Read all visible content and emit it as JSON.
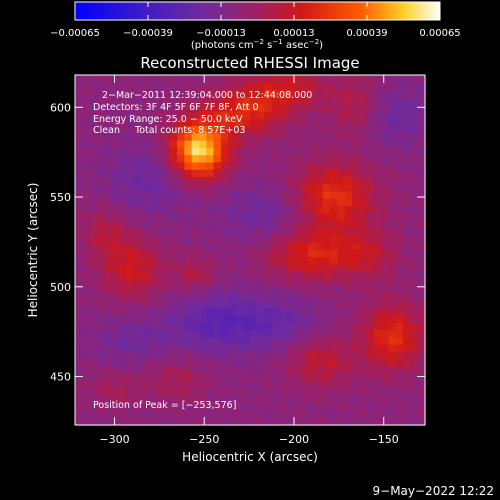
{
  "chart_data": {
    "type": "heatmap",
    "title": "Reconstructed RHESSI Image",
    "xlabel": "Heliocentric X (arcsec)",
    "ylabel": "Heliocentric Y (arcsec)",
    "xlim": [
      -322,
      -127
    ],
    "ylim": [
      423,
      618
    ],
    "x_ticks": [
      -300,
      -250,
      -200,
      -150
    ],
    "x_tick_labels": [
      "−300",
      "−250",
      "−200",
      "−150"
    ],
    "y_ticks": [
      450,
      500,
      550,
      600
    ],
    "y_tick_labels": [
      "450",
      "500",
      "550",
      "600"
    ],
    "colorbar": {
      "range": [
        -0.00065,
        0.00065
      ],
      "ticks": [
        -0.00065,
        -0.00039,
        -0.00013,
        0.00013,
        0.00039,
        0.00065
      ],
      "tick_labels": [
        "−0.00065",
        "−0.00039",
        "−0.00013",
        "0.00013",
        "0.00039",
        "0.00065"
      ],
      "unit_label_parts": [
        "(photons cm",
        "−2",
        " s",
        "−1",
        " asec",
        "−2",
        ")"
      ]
    },
    "annotations": [
      "2−Mar−2011 12:39:04.000 to 12:44:08.000",
      "Detectors: 3F 4F 5F 6F 7F 8F, Att 0",
      "Energy Range: 25.0 − 50.0 keV",
      "Clean     Total counts: 8.57E+03"
    ],
    "peak_label": "Position of Peak = [−253,576]",
    "peak": [
      -253,
      576
    ],
    "sources": [
      {
        "x": -253,
        "y": 576,
        "amp": 0.00065,
        "sx": 11,
        "sy": 11
      },
      {
        "x": -228,
        "y": 597,
        "amp": 0.00028,
        "sx": 16,
        "sy": 9
      },
      {
        "x": -205,
        "y": 610,
        "amp": 0.00022,
        "sx": 16,
        "sy": 8
      },
      {
        "x": -178,
        "y": 550,
        "amp": 0.00032,
        "sx": 16,
        "sy": 13
      },
      {
        "x": -190,
        "y": 518,
        "amp": 0.00027,
        "sx": 18,
        "sy": 10
      },
      {
        "x": -165,
        "y": 600,
        "amp": 0.00016,
        "sx": 10,
        "sy": 12
      },
      {
        "x": -158,
        "y": 518,
        "amp": 0.00014,
        "sx": 12,
        "sy": 10
      },
      {
        "x": -145,
        "y": 472,
        "amp": 0.0003,
        "sx": 12,
        "sy": 13
      },
      {
        "x": -290,
        "y": 510,
        "amp": 0.00022,
        "sx": 12,
        "sy": 12
      },
      {
        "x": -305,
        "y": 530,
        "amp": 0.00014,
        "sx": 9,
        "sy": 10
      },
      {
        "x": -255,
        "y": 507,
        "amp": 0.00014,
        "sx": 8,
        "sy": 7
      },
      {
        "x": -185,
        "y": 458,
        "amp": 0.00018,
        "sx": 13,
        "sy": 10
      },
      {
        "x": -265,
        "y": 448,
        "amp": 0.00011,
        "sx": 12,
        "sy": 9
      },
      {
        "x": -300,
        "y": 443,
        "amp": 0.0001,
        "sx": 10,
        "sy": 7
      },
      {
        "x": -240,
        "y": 480,
        "amp": -0.0002,
        "sx": 20,
        "sy": 12
      },
      {
        "x": -280,
        "y": 560,
        "amp": -0.00012,
        "sx": 18,
        "sy": 14
      },
      {
        "x": -215,
        "y": 540,
        "amp": -0.00012,
        "sx": 18,
        "sy": 12
      },
      {
        "x": -145,
        "y": 595,
        "amp": -0.00012,
        "sx": 15,
        "sy": 12
      },
      {
        "x": -290,
        "y": 470,
        "amp": -0.0001,
        "sx": 15,
        "sy": 10
      },
      {
        "x": -205,
        "y": 480,
        "amp": -0.0001,
        "sx": 15,
        "sy": 10
      }
    ],
    "baseline": -8e-05,
    "grid": false,
    "legend": "none"
  },
  "footer_timestamp": "9−May−2022 12:22"
}
